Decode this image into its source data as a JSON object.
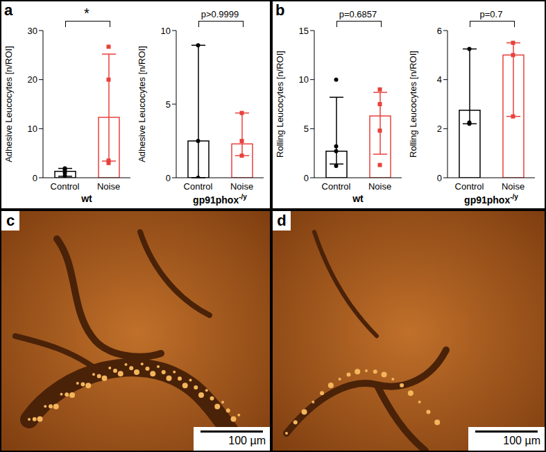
{
  "chart_data": [
    {
      "type": "bar",
      "panel": "a",
      "categories": [
        "Control",
        "Noise"
      ],
      "values": [
        1.3,
        12.3
      ],
      "error_low": [
        0.3,
        3.4
      ],
      "error_high": [
        1.9,
        25.2
      ],
      "points": [
        [
          0.4,
          1.0,
          1.6,
          1.9
        ],
        [
          26.7,
          20.0,
          3.5,
          3.0
        ]
      ],
      "colors": [
        "#000000",
        "#e8413c"
      ],
      "ylabel": "Adhesive Leucocytes [n/ROI]",
      "xlabel": "wt",
      "annotation": "*",
      "ylim": [
        0,
        30
      ],
      "yticks": [
        0,
        10,
        20,
        30
      ]
    },
    {
      "type": "bar",
      "categories": [
        "Control",
        "Noise"
      ],
      "values": [
        2.5,
        2.3
      ],
      "error_low": [
        0.0,
        1.5
      ],
      "error_high": [
        9.0,
        4.4
      ],
      "points": [
        [
          9.0,
          2.5,
          0.0
        ],
        [
          4.4,
          2.5,
          1.5
        ]
      ],
      "colors": [
        "#000000",
        "#e8413c"
      ],
      "ylabel": "Adhesive Leucocytes [n/ROI]",
      "xlabel": "gp91phox",
      "xlabel_superscript": "-/y",
      "annotation": "p>0.9999",
      "ylim": [
        0,
        10
      ],
      "yticks": [
        0,
        5,
        10
      ]
    },
    {
      "type": "bar",
      "panel": "b",
      "categories": [
        "Control",
        "Noise"
      ],
      "values": [
        2.7,
        6.3
      ],
      "error_low": [
        1.4,
        2.4
      ],
      "error_high": [
        8.2,
        8.7
      ],
      "points": [
        [
          10.0,
          3.2,
          2.7,
          1.2
        ],
        [
          9.0,
          7.5,
          4.8,
          1.3
        ]
      ],
      "colors": [
        "#000000",
        "#e8413c"
      ],
      "ylabel": "Rolling Leucocytes [n/ROI]",
      "xlabel": "wt",
      "annotation": "p=0.6857",
      "ylim": [
        0,
        15
      ],
      "yticks": [
        0,
        5,
        10,
        15
      ]
    },
    {
      "type": "bar",
      "categories": [
        "Control",
        "Noise"
      ],
      "values": [
        2.75,
        5.0
      ],
      "error_low": [
        2.2,
        2.5
      ],
      "error_high": [
        5.25,
        5.5
      ],
      "points": [
        [
          5.25,
          2.25,
          2.2
        ],
        [
          5.5,
          5.0,
          2.5
        ]
      ],
      "colors": [
        "#000000",
        "#e8413c"
      ],
      "ylabel": "Rolling Leucocytes [n/ROI]",
      "xlabel": "gp91phox",
      "xlabel_superscript": "-/y",
      "annotation": "p=0.7",
      "ylim": [
        0,
        6
      ],
      "yticks": [
        0,
        2,
        4,
        6
      ]
    }
  ],
  "images": [
    {
      "panel": "c",
      "scale_bar": "100 µm"
    },
    {
      "panel": "d",
      "scale_bar": "100 µm"
    }
  ]
}
